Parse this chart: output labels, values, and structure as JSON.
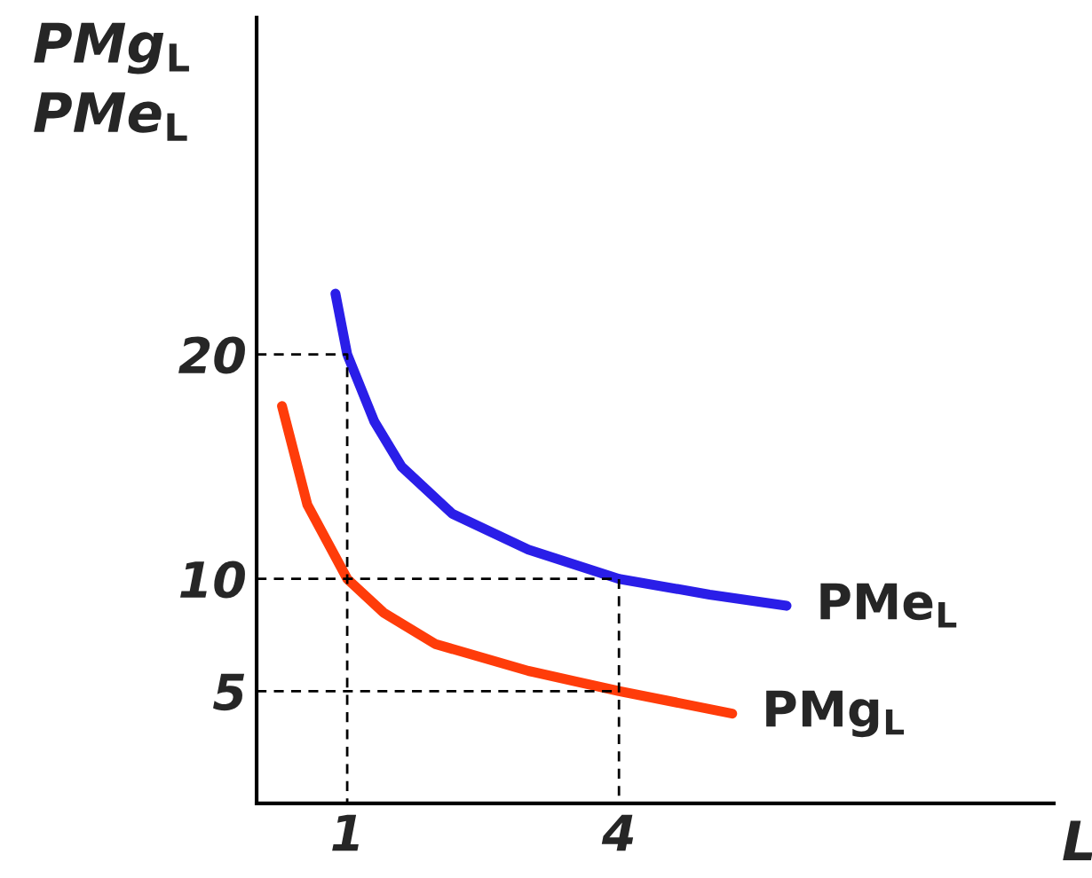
{
  "chart_data": {
    "type": "line",
    "xlabel": "L",
    "ylabel": "PMg$_{L}$\nPMe$_{L}$",
    "xlim": [
      0,
      8.8
    ],
    "ylim": [
      0,
      35
    ],
    "xticks": [
      1,
      4
    ],
    "yticks": [
      5,
      10,
      20
    ],
    "grid": false,
    "legend": false,
    "marker": "none",
    "series": [
      {
        "name": "PMe$_{L}$",
        "color": "#2a1ee8",
        "x": [
          0.87,
          1,
          1.3,
          1.6,
          2.16,
          3,
          4,
          5,
          5.85
        ],
        "values": [
          22.7,
          20,
          17,
          15,
          12.9,
          11.3,
          10,
          9.3,
          8.8
        ]
      },
      {
        "name": "PMg$_{L}$",
        "color": "#ff3c0a",
        "x": [
          0.28,
          0.56,
          1,
          1.4,
          1.97,
          3,
          4,
          5.25
        ],
        "values": [
          17.7,
          13.3,
          10,
          8.5,
          7.1,
          5.9,
          5,
          4.0
        ]
      },
      {
        "color": "#000000",
        "line_style": "dashed",
        "x": [
          0,
          1,
          1
        ],
        "values": [
          20,
          20,
          0
        ]
      },
      {
        "color": "#000000",
        "line_style": "dashed",
        "x": [
          0,
          4,
          4
        ],
        "values": [
          10,
          10,
          0
        ]
      },
      {
        "color": "#000000",
        "line_style": "dashed",
        "x": [
          0,
          4
        ],
        "values": [
          5,
          5
        ]
      }
    ]
  }
}
